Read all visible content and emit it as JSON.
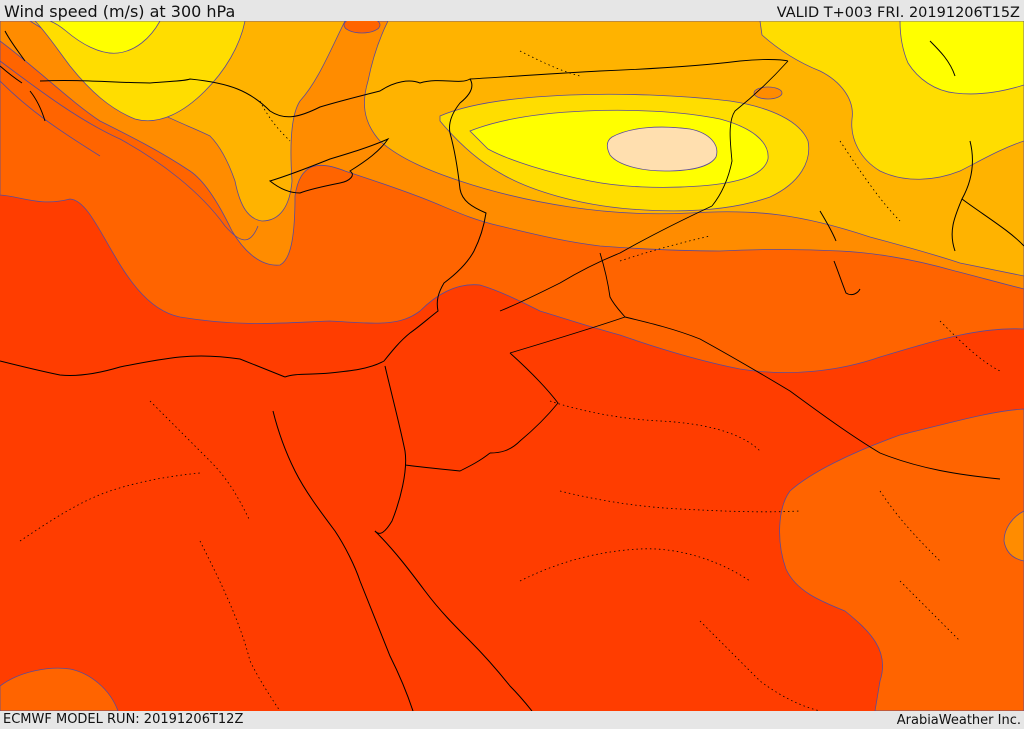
{
  "header": {
    "title": "Wind speed (m/s) at 300 hPa",
    "valid": "VALID T+003 FRI. 20191206T15Z"
  },
  "footer": {
    "model_run": "ECMWF MODEL RUN: 20191206T12Z",
    "credit": "ArabiaWeather Inc."
  },
  "colors": {
    "band_darkest": "#ff3d00",
    "band_dark": "#ff6400",
    "band_mid": "#ff8c00",
    "band_light": "#ffb300",
    "band_yellow": "#ffdd00",
    "band_bright": "#ffff00",
    "core": "#ffdfaf",
    "contour": "#5a4a9a",
    "coast": "#000000"
  }
}
